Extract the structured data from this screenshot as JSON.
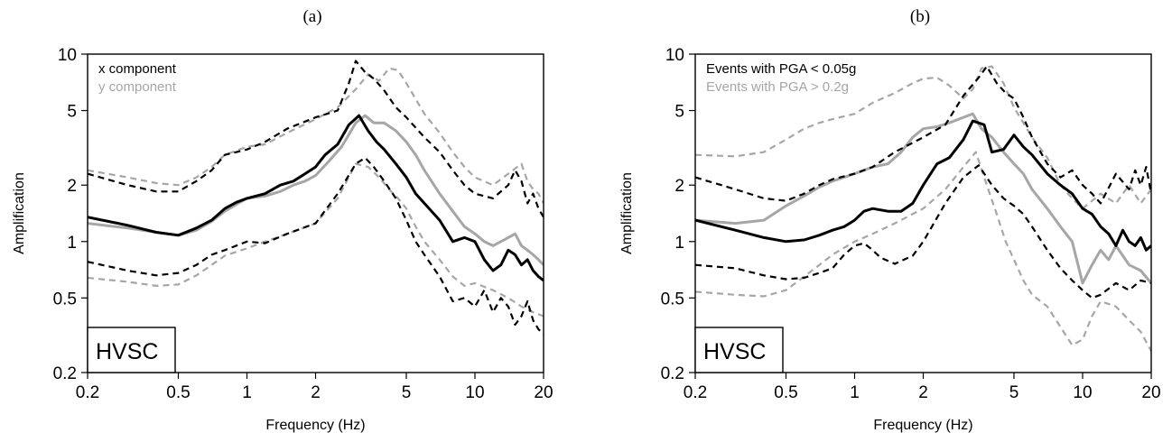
{
  "figure": {
    "panels": [
      {
        "label": "(a)"
      },
      {
        "label": "(b)"
      }
    ]
  },
  "chart_data": [
    {
      "type": "line",
      "panel_label": "(a)",
      "xlabel": "Frequency (Hz)",
      "ylabel": "Amplification",
      "xscale": "log",
      "yscale": "log",
      "xlim": [
        0.2,
        20
      ],
      "ylim": [
        0.2,
        10
      ],
      "xticks": [
        "0.2",
        "0.5",
        "1",
        "2",
        "5",
        "10",
        "20"
      ],
      "yticks": [
        "0.2",
        "0.5",
        "1",
        "2",
        "5",
        "10"
      ],
      "site_label": "HVSC",
      "legend": [
        {
          "text": "x component",
          "color": "#000000"
        },
        {
          "text": "y component",
          "color": "#a6a6a6"
        }
      ],
      "series": [
        {
          "name": "x component",
          "color": "#000000",
          "style": "solid",
          "x": [
            0.2,
            0.3,
            0.4,
            0.5,
            0.6,
            0.7,
            0.8,
            0.9,
            1.0,
            1.2,
            1.4,
            1.6,
            1.8,
            2.0,
            2.2,
            2.5,
            2.8,
            3.1,
            3.4,
            3.7,
            4.0,
            4.5,
            5.0,
            5.5,
            6.0,
            7.0,
            8.0,
            9.0,
            10,
            11,
            12,
            13,
            14,
            15,
            16,
            17,
            18,
            19,
            20
          ],
          "y": [
            1.35,
            1.22,
            1.12,
            1.08,
            1.18,
            1.3,
            1.5,
            1.62,
            1.7,
            1.8,
            2.0,
            2.1,
            2.3,
            2.5,
            2.9,
            3.3,
            4.2,
            4.7,
            3.9,
            3.4,
            3.1,
            2.6,
            2.2,
            1.8,
            1.6,
            1.3,
            1.0,
            1.05,
            1.0,
            0.8,
            0.7,
            0.75,
            0.9,
            0.85,
            0.75,
            0.8,
            0.7,
            0.65,
            0.62
          ]
        },
        {
          "name": "x component",
          "color": "#000000",
          "style": "dashed",
          "x": [
            0.2,
            0.3,
            0.4,
            0.5,
            0.6,
            0.7,
            0.8,
            1.0,
            1.2,
            1.5,
            2.0,
            2.5,
            2.8,
            3.0,
            3.3,
            3.6,
            4.0,
            4.5,
            5.0,
            6.0,
            7.0,
            8.0,
            9.0,
            10,
            12,
            14,
            15,
            16,
            17,
            18,
            19,
            20
          ],
          "y": [
            2.3,
            2.0,
            1.85,
            1.85,
            2.1,
            2.4,
            2.9,
            3.1,
            3.4,
            4.0,
            4.6,
            5.0,
            7.0,
            9.2,
            8.0,
            7.4,
            6.4,
            5.2,
            4.6,
            3.6,
            3.0,
            2.4,
            2.0,
            1.8,
            1.7,
            2.0,
            2.4,
            2.1,
            1.6,
            1.8,
            1.5,
            1.35
          ]
        },
        {
          "name": "x component",
          "color": "#000000",
          "style": "dashed",
          "x": [
            0.2,
            0.3,
            0.4,
            0.5,
            0.6,
            0.7,
            0.8,
            1.0,
            1.2,
            1.5,
            2.0,
            2.5,
            3.0,
            3.3,
            3.6,
            4.0,
            4.5,
            5.0,
            5.5,
            6.0,
            7.0,
            8.0,
            9.0,
            10,
            11,
            12,
            13,
            14,
            15,
            16,
            17,
            18,
            19,
            20
          ],
          "y": [
            0.78,
            0.7,
            0.66,
            0.68,
            0.75,
            0.85,
            0.9,
            1.0,
            0.98,
            1.1,
            1.25,
            1.8,
            2.6,
            2.8,
            2.5,
            2.1,
            1.7,
            1.3,
            1.0,
            0.85,
            0.65,
            0.48,
            0.5,
            0.45,
            0.55,
            0.42,
            0.5,
            0.45,
            0.36,
            0.4,
            0.48,
            0.38,
            0.34,
            0.32
          ]
        },
        {
          "name": "y component",
          "color": "#a6a6a6",
          "style": "solid",
          "x": [
            0.2,
            0.3,
            0.4,
            0.5,
            0.6,
            0.7,
            0.8,
            0.9,
            1.0,
            1.2,
            1.4,
            1.6,
            1.8,
            2.0,
            2.3,
            2.6,
            3.0,
            3.3,
            3.6,
            4.0,
            4.5,
            5.0,
            5.5,
            6.0,
            7.0,
            8.0,
            9.0,
            10,
            11,
            12,
            14,
            15,
            16,
            17,
            18,
            19,
            20
          ],
          "y": [
            1.25,
            1.18,
            1.12,
            1.08,
            1.15,
            1.28,
            1.45,
            1.58,
            1.7,
            1.75,
            1.85,
            2.0,
            2.1,
            2.25,
            2.7,
            3.2,
            4.3,
            4.7,
            4.3,
            4.3,
            3.9,
            3.4,
            2.9,
            2.4,
            1.8,
            1.45,
            1.2,
            1.1,
            1.0,
            0.95,
            1.05,
            1.1,
            0.95,
            0.9,
            0.85,
            0.8,
            0.75
          ]
        },
        {
          "name": "y component",
          "color": "#a6a6a6",
          "style": "dashed",
          "x": [
            0.2,
            0.3,
            0.4,
            0.5,
            0.6,
            0.7,
            0.8,
            1.0,
            1.2,
            1.5,
            2.0,
            2.5,
            3.0,
            3.4,
            3.8,
            4.2,
            4.6,
            5.0,
            6.0,
            7.0,
            8.0,
            9.0,
            10,
            12,
            14,
            16,
            17,
            18,
            19,
            20
          ],
          "y": [
            2.4,
            2.2,
            2.05,
            2.0,
            2.2,
            2.5,
            2.9,
            3.2,
            3.3,
            3.8,
            4.5,
            5.2,
            6.5,
            7.8,
            7.2,
            8.4,
            8.2,
            7.0,
            4.8,
            3.8,
            3.0,
            2.5,
            2.2,
            2.0,
            2.3,
            2.6,
            2.1,
            1.9,
            1.8,
            1.6
          ]
        },
        {
          "name": "y component",
          "color": "#a6a6a6",
          "style": "dashed",
          "x": [
            0.2,
            0.3,
            0.4,
            0.5,
            0.6,
            0.7,
            0.8,
            1.0,
            1.2,
            1.5,
            2.0,
            2.5,
            3.0,
            3.4,
            3.8,
            4.2,
            4.6,
            5.0,
            5.5,
            6.0,
            7.0,
            8.0,
            9.0,
            10,
            12,
            14,
            16,
            18,
            20
          ],
          "y": [
            0.64,
            0.61,
            0.58,
            0.59,
            0.66,
            0.75,
            0.84,
            0.92,
            1.0,
            1.1,
            1.25,
            1.7,
            2.6,
            2.5,
            2.2,
            1.9,
            1.7,
            1.5,
            1.2,
            1.0,
            0.8,
            0.65,
            0.58,
            0.6,
            0.55,
            0.5,
            0.45,
            0.42,
            0.4
          ]
        }
      ]
    },
    {
      "type": "line",
      "panel_label": "(b)",
      "xlabel": "Frequency (Hz)",
      "ylabel": "Amplification",
      "xscale": "log",
      "yscale": "log",
      "xlim": [
        0.2,
        20
      ],
      "ylim": [
        0.2,
        10
      ],
      "xticks": [
        "0.2",
        "0.5",
        "1",
        "2",
        "5",
        "10",
        "20"
      ],
      "yticks": [
        "0.2",
        "0.5",
        "1",
        "2",
        "5",
        "10"
      ],
      "site_label": "HVSC",
      "legend": [
        {
          "text": "Events with PGA < 0.05g",
          "color": "#000000"
        },
        {
          "text": "Events with PGA > 0.2g",
          "color": "#a6a6a6"
        }
      ],
      "series": [
        {
          "name": "Events with PGA < 0.05g",
          "color": "#000000",
          "style": "solid",
          "x": [
            0.2,
            0.3,
            0.4,
            0.5,
            0.6,
            0.7,
            0.8,
            0.9,
            1.0,
            1.1,
            1.2,
            1.4,
            1.6,
            1.8,
            2.0,
            2.3,
            2.6,
            3.0,
            3.3,
            3.7,
            4.0,
            4.5,
            5.0,
            5.5,
            6.0,
            7.0,
            8.0,
            9.0,
            10,
            11,
            12,
            13,
            14,
            15,
            16,
            17,
            18,
            19,
            20
          ],
          "y": [
            1.3,
            1.15,
            1.05,
            1.0,
            1.02,
            1.08,
            1.15,
            1.2,
            1.3,
            1.45,
            1.5,
            1.45,
            1.45,
            1.6,
            2.0,
            2.6,
            2.8,
            3.5,
            4.4,
            4.2,
            3.0,
            3.1,
            3.7,
            3.2,
            2.9,
            2.3,
            2.0,
            1.8,
            1.5,
            1.4,
            1.2,
            1.1,
            0.95,
            1.15,
            1.0,
            0.95,
            1.05,
            0.9,
            0.95
          ]
        },
        {
          "name": "Events with PGA < 0.05g",
          "color": "#000000",
          "style": "dashed",
          "x": [
            0.2,
            0.3,
            0.4,
            0.5,
            0.6,
            0.7,
            0.8,
            1.0,
            1.2,
            1.5,
            2.0,
            2.5,
            3.0,
            3.5,
            3.8,
            4.2,
            4.6,
            5.0,
            5.5,
            6.0,
            7.0,
            8.0,
            9.0,
            10,
            11,
            12,
            14,
            16,
            17,
            18,
            19,
            20
          ],
          "y": [
            2.2,
            1.9,
            1.7,
            1.65,
            1.8,
            2.0,
            2.15,
            2.3,
            2.5,
            3.0,
            3.6,
            4.2,
            6.0,
            7.5,
            8.6,
            7.0,
            6.2,
            5.8,
            4.6,
            3.6,
            2.6,
            2.2,
            2.4,
            2.0,
            1.8,
            1.6,
            2.3,
            1.9,
            2.4,
            2.0,
            2.5,
            1.8
          ]
        },
        {
          "name": "Events with PGA < 0.05g",
          "color": "#000000",
          "style": "dashed",
          "x": [
            0.2,
            0.3,
            0.4,
            0.5,
            0.6,
            0.7,
            0.8,
            0.9,
            1.0,
            1.1,
            1.2,
            1.3,
            1.5,
            1.8,
            2.0,
            2.5,
            3.0,
            3.5,
            4.0,
            4.5,
            5.0,
            5.5,
            6.0,
            7.0,
            8.0,
            9.0,
            10,
            11,
            12,
            14,
            16,
            18,
            20
          ],
          "y": [
            0.75,
            0.72,
            0.66,
            0.63,
            0.64,
            0.68,
            0.72,
            0.85,
            0.95,
            0.98,
            0.9,
            0.82,
            0.76,
            0.84,
            1.0,
            1.6,
            2.2,
            2.55,
            2.0,
            1.7,
            1.55,
            1.4,
            1.2,
            0.9,
            0.72,
            0.62,
            0.55,
            0.5,
            0.52,
            0.6,
            0.55,
            0.62,
            0.6
          ]
        },
        {
          "name": "Events with PGA > 0.2g",
          "color": "#a6a6a6",
          "style": "solid",
          "x": [
            0.2,
            0.3,
            0.4,
            0.5,
            0.6,
            0.7,
            0.8,
            0.9,
            1.0,
            1.2,
            1.4,
            1.6,
            1.8,
            2.0,
            2.3,
            2.6,
            3.0,
            3.3,
            3.6,
            4.0,
            4.5,
            5.0,
            5.5,
            6.0,
            7.0,
            8.0,
            9.0,
            10,
            11,
            12,
            13,
            14,
            16,
            18,
            20
          ],
          "y": [
            1.3,
            1.25,
            1.3,
            1.55,
            1.75,
            1.95,
            2.1,
            2.2,
            2.3,
            2.5,
            2.6,
            3.0,
            3.6,
            4.0,
            4.1,
            4.3,
            4.6,
            4.8,
            4.0,
            3.6,
            3.0,
            2.6,
            2.3,
            1.9,
            1.5,
            1.2,
            1.0,
            0.6,
            0.75,
            0.9,
            0.8,
            0.95,
            0.75,
            0.7,
            0.6
          ]
        },
        {
          "name": "Events with PGA > 0.2g",
          "color": "#a6a6a6",
          "style": "dashed",
          "x": [
            0.2,
            0.3,
            0.4,
            0.5,
            0.6,
            0.7,
            0.8,
            1.0,
            1.2,
            1.5,
            1.8,
            2.0,
            2.3,
            2.6,
            3.0,
            3.3,
            3.6,
            4.0,
            4.5,
            5.0,
            6.0,
            7.0,
            8.0,
            9.0,
            10,
            12,
            14,
            16,
            18,
            20
          ],
          "y": [
            2.9,
            2.85,
            3.0,
            3.5,
            4.0,
            4.3,
            4.5,
            4.8,
            5.5,
            6.2,
            7.0,
            7.4,
            7.5,
            6.8,
            5.8,
            6.5,
            8.4,
            8.6,
            7.0,
            5.2,
            3.6,
            2.8,
            2.0,
            1.7,
            1.5,
            1.8,
            1.6,
            2.0,
            1.6,
            1.9
          ]
        },
        {
          "name": "Events with PGA > 0.2g",
          "color": "#a6a6a6",
          "style": "dashed",
          "x": [
            0.2,
            0.3,
            0.4,
            0.5,
            0.6,
            0.7,
            0.8,
            1.0,
            1.2,
            1.5,
            2.0,
            2.5,
            3.0,
            3.4,
            3.8,
            4.2,
            4.6,
            5.0,
            5.5,
            6.0,
            7.0,
            8.0,
            9.0,
            10,
            11,
            12,
            14,
            16,
            18,
            20
          ],
          "y": [
            0.54,
            0.52,
            0.51,
            0.55,
            0.65,
            0.75,
            0.85,
            1.0,
            1.1,
            1.25,
            1.5,
            1.9,
            2.5,
            3.0,
            2.0,
            1.4,
            1.0,
            0.8,
            0.62,
            0.52,
            0.45,
            0.35,
            0.28,
            0.3,
            0.4,
            0.48,
            0.45,
            0.38,
            0.33,
            0.26
          ]
        }
      ]
    }
  ]
}
